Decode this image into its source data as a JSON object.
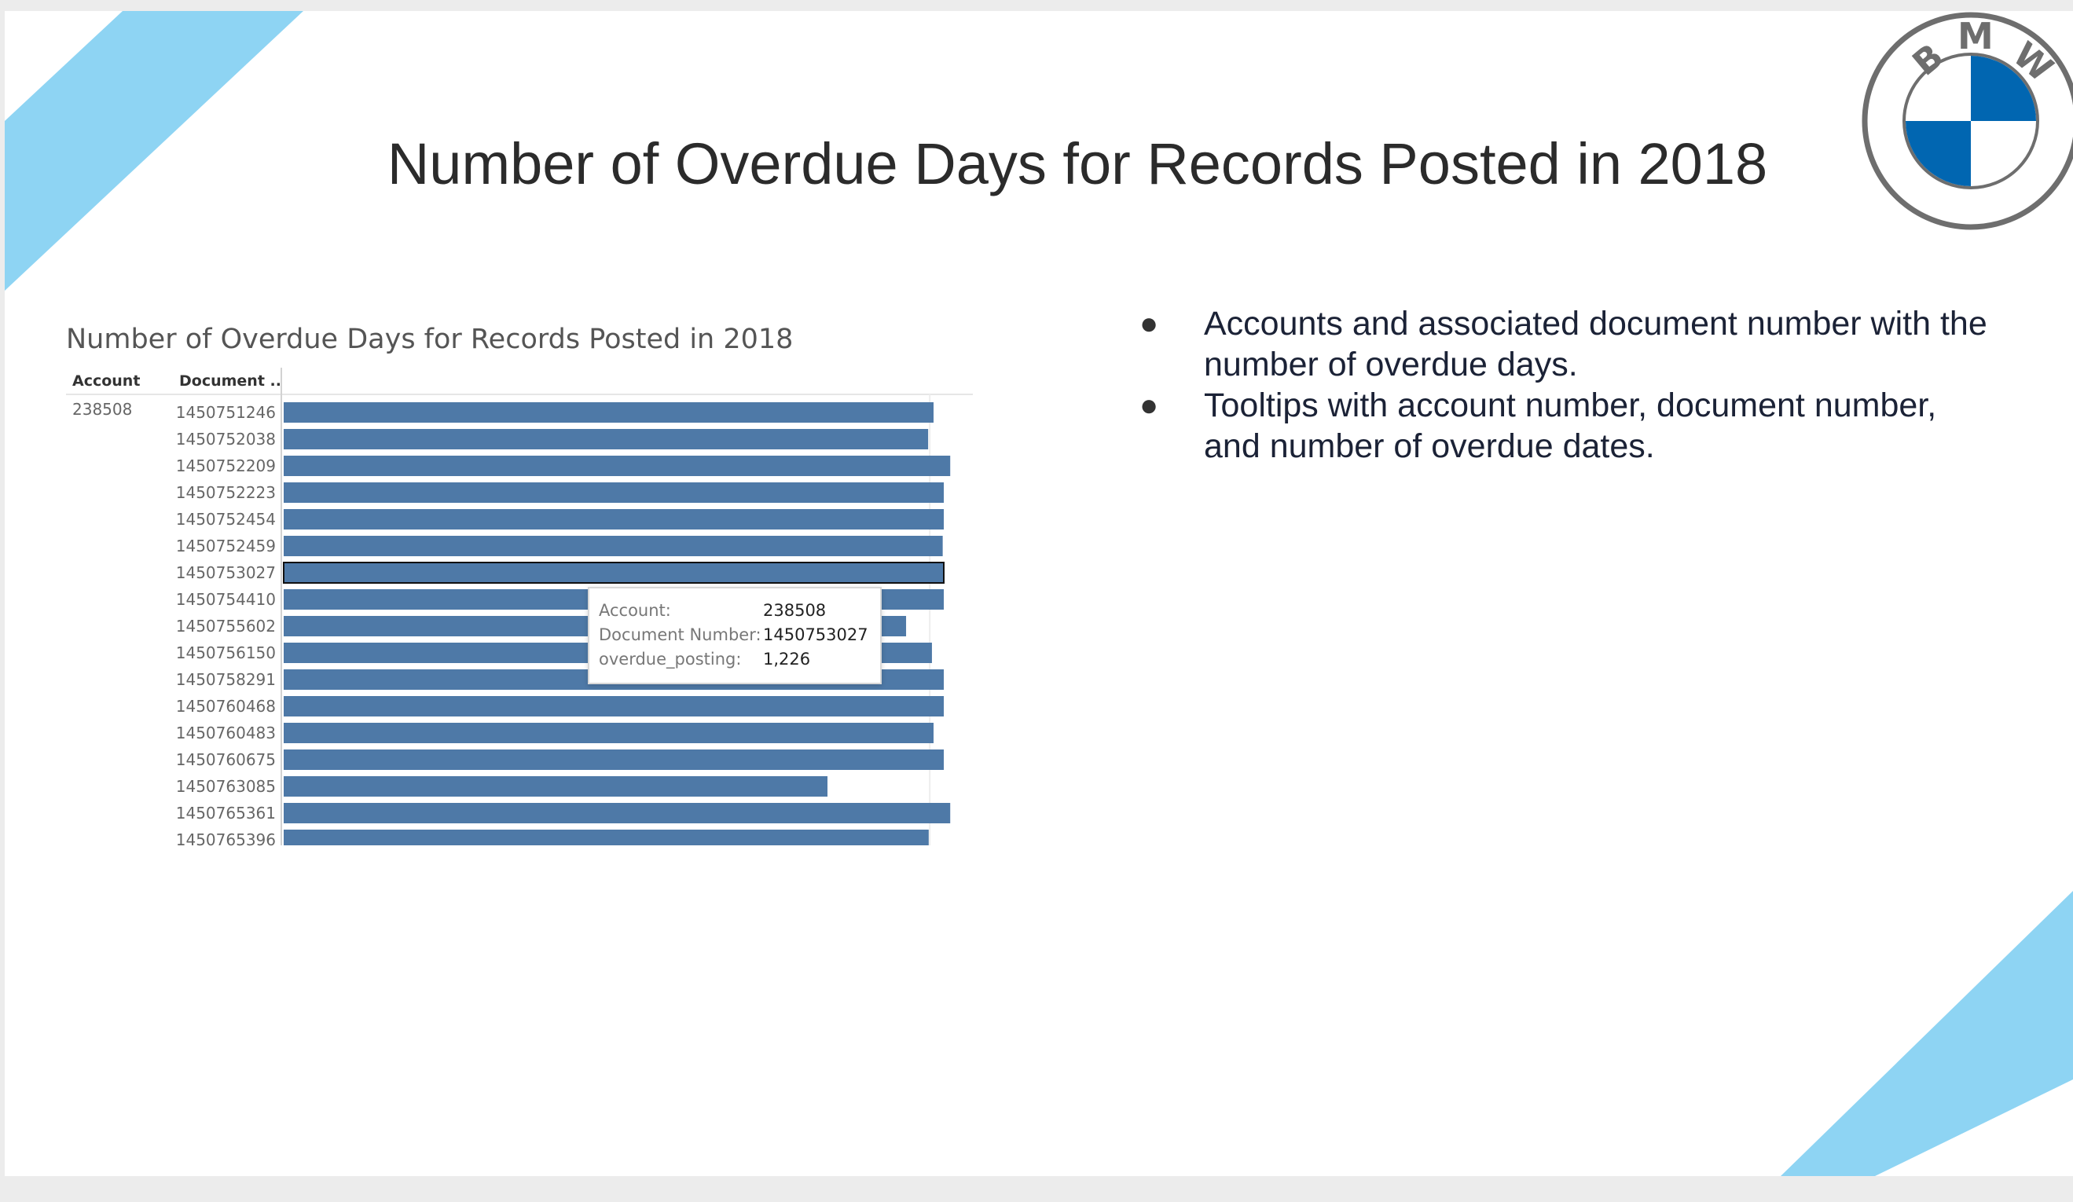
{
  "slide": {
    "title": "Number of Overdue Days for Records Posted in 2018",
    "bullets": [
      "Accounts and associated document number with the number of overdue days.",
      "Tooltips with account number, document number, and number of overdue dates."
    ]
  },
  "logo": {
    "letters": [
      "B",
      "M",
      "W"
    ]
  },
  "colors": {
    "decor": "#8ed4f3",
    "bar": "#4e79a7",
    "logo_blue": "#0166b1",
    "logo_ring": "#6e6e6e"
  },
  "tooltip": {
    "rows": [
      {
        "key": "Account:",
        "value": "238508"
      },
      {
        "key": "Document Number:",
        "value": "1450753027"
      },
      {
        "key": "overdue_posting:",
        "value": "1,226"
      }
    ]
  },
  "chart_data": {
    "type": "bar",
    "orientation": "horizontal",
    "title": "Number of Overdue Days for Records Posted in 2018",
    "row_headers": [
      "Account",
      "Document .."
    ],
    "account": "238508",
    "categories": [
      "1450751246",
      "1450752038",
      "1450752209",
      "1450752223",
      "1450752454",
      "1450752459",
      "1450753027",
      "1450754410",
      "1450755602",
      "1450756150",
      "1450758291",
      "1450760468",
      "1450760483",
      "1450760675",
      "1450763085",
      "1450765361",
      "1450765396"
    ],
    "series": [
      {
        "values": [
          1207,
          1197,
          1238,
          1226,
          1226,
          1224,
          1226,
          1226,
          1156,
          1204,
          1226,
          1226,
          1207,
          1226,
          1010,
          1238,
          1198
        ]
      }
    ],
    "highlighted": "1450753027",
    "xlim": [
      0,
      1280
    ],
    "gridlines": [
      1200
    ],
    "grid": true
  }
}
